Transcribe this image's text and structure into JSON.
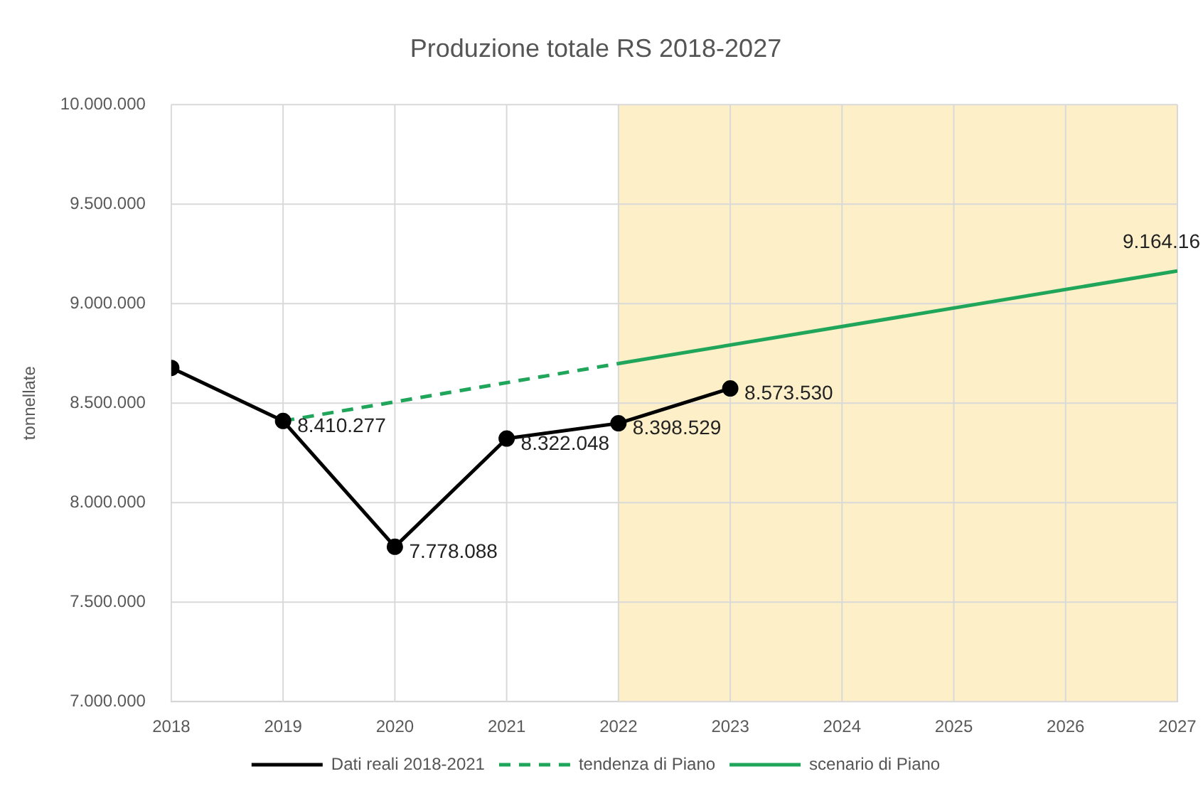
{
  "chart_data": {
    "type": "line",
    "title": "Produzione totale RS 2018-2027",
    "ylabel": "tonnellate",
    "xlim": [
      2018,
      2027
    ],
    "xticks": [
      2018,
      2019,
      2020,
      2021,
      2022,
      2023,
      2024,
      2025,
      2026,
      2027
    ],
    "ylim": [
      7000000,
      10000000
    ],
    "yticks": [
      {
        "value": 7000000,
        "label": "7.000.000"
      },
      {
        "value": 7500000,
        "label": "7.500.000"
      },
      {
        "value": 8000000,
        "label": "8.000.000"
      },
      {
        "value": 8500000,
        "label": "8.500.000"
      },
      {
        "value": 9000000,
        "label": "9.000.000"
      },
      {
        "value": 9500000,
        "label": "9.500.000"
      },
      {
        "value": 10000000,
        "label": "10.000.000"
      }
    ],
    "grid": true,
    "legend": "bottom",
    "bands": [
      {
        "axis": "x",
        "from": 2022,
        "to": 2027,
        "color": "#fdefc8"
      }
    ],
    "series": [
      {
        "name": "Dati reali 2018-2021",
        "color": "#000000",
        "marker": "circle",
        "line_style": "solid",
        "x": [
          2018,
          2019,
          2020,
          2021,
          2022,
          2023
        ],
        "values": [
          8677000,
          8410277,
          7778088,
          8322048,
          8398529,
          8573530
        ],
        "value_labels": [
          null,
          "8.410.277",
          "7.778.088",
          "8.322.048",
          "8.398.529",
          "8.573.530"
        ]
      },
      {
        "name": "tendenza di Piano",
        "color": "#1fa65a",
        "marker": "none",
        "line_style": "dashed",
        "x": [
          2019,
          2022
        ],
        "values": [
          8410277,
          8699000
        ]
      },
      {
        "name": "scenario di Piano",
        "color": "#1fa65a",
        "marker": "none",
        "line_style": "solid",
        "x": [
          2022,
          2027
        ],
        "values": [
          8699000,
          9164160
        ],
        "value_labels": [
          null,
          "9.164.16"
        ]
      }
    ]
  }
}
